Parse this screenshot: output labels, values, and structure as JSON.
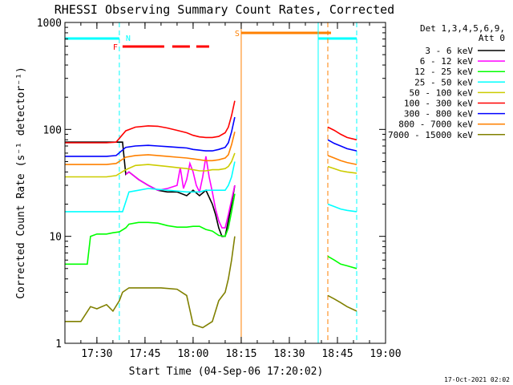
{
  "chart_data": {
    "type": "line",
    "title": "RHESSI Observing Summary Count Rates, Corrected",
    "xlabel": "Start Time (04-Sep-06 17:20:02)",
    "ylabel": "Corrected Count Rate (s⁻¹ detector⁻¹)",
    "yscale": "log",
    "ylim": [
      1,
      1000
    ],
    "xlim": [
      "17:20:02",
      "19:00:00"
    ],
    "x_ticks": [
      "17:30",
      "17:45",
      "18:00",
      "18:15",
      "18:30",
      "18:45",
      "19:00"
    ],
    "y_ticks": [
      "1",
      "10",
      "100",
      "1000"
    ],
    "legend_position": "right",
    "legend_title": [
      "Det 1,3,4,5,6,9,",
      "Att 0"
    ],
    "footer": "17-Oct-2021 02:02",
    "series": [
      {
        "name": "3 - 6 keV",
        "color": "#000000",
        "x": [
          "17:20",
          "17:28",
          "17:30",
          "17:33",
          "17:35",
          "17:38",
          "17:39",
          "17:40",
          "17:43",
          "17:46",
          "17:49",
          "17:52",
          "17:55",
          "17:58",
          "18:00",
          "18:02",
          "18:04",
          "18:06",
          "18:07",
          "18:08",
          "18:09",
          "18:10",
          "18:11",
          "18:12",
          "18:13"
        ],
        "y": [
          76,
          76,
          76,
          76,
          76,
          76,
          38,
          40,
          34,
          30,
          27,
          26,
          26,
          24,
          27,
          24,
          27,
          20,
          16,
          12,
          10,
          10,
          14,
          20,
          30
        ]
      },
      {
        "name": "6 - 12 keV",
        "color": "#ff00ff",
        "x": [
          "17:39",
          "17:40",
          "17:43",
          "17:46",
          "17:49",
          "17:52",
          "17:55",
          "17:56",
          "17:57",
          "17:58",
          "17:59",
          "18:00",
          "18:01",
          "18:02",
          "18:03",
          "18:04",
          "18:05",
          "18:06",
          "18:07",
          "18:08",
          "18:09",
          "18:10",
          "18:11",
          "18:12",
          "18:13"
        ],
        "y": [
          38,
          40,
          34,
          30,
          27,
          28,
          30,
          44,
          28,
          34,
          48,
          40,
          30,
          26,
          36,
          56,
          36,
          26,
          18,
          14,
          12,
          12,
          16,
          22,
          30
        ]
      },
      {
        "name": "12 - 25 keV",
        "color": "#00ff00",
        "x": [
          "17:20",
          "17:27",
          "17:28",
          "17:30",
          "17:33",
          "17:35",
          "17:37",
          "17:39",
          "17:40",
          "17:43",
          "17:46",
          "17:49",
          "17:52",
          "17:55",
          "17:58",
          "18:00",
          "18:02",
          "18:04",
          "18:06",
          "18:08",
          "18:10",
          "18:11",
          "18:12",
          "18:13",
          "18:42",
          "18:44",
          "18:46",
          "18:48",
          "18:51"
        ],
        "y": [
          5.5,
          5.5,
          10,
          10.5,
          10.5,
          10.8,
          11,
          12,
          13,
          13.5,
          13.5,
          13.3,
          12.6,
          12.2,
          12.2,
          12.4,
          12.4,
          11.6,
          11.2,
          10.2,
          10,
          12,
          17,
          25,
          6.5,
          6,
          5.5,
          5.3,
          5
        ]
      },
      {
        "name": "25 - 50 keV",
        "color": "#00ffff",
        "x": [
          "17:20",
          "17:24",
          "17:28",
          "17:30",
          "17:33",
          "17:36",
          "17:38",
          "17:40",
          "17:43",
          "17:46",
          "17:49",
          "17:52",
          "17:55",
          "17:58",
          "18:00",
          "18:02",
          "18:04",
          "18:06",
          "18:08",
          "18:10",
          "18:11",
          "18:12",
          "18:13",
          "18:42",
          "18:44",
          "18:46",
          "18:48",
          "18:51"
        ],
        "y": [
          17,
          17,
          17,
          17,
          17,
          17,
          17,
          26,
          27,
          28,
          27.5,
          27,
          26.5,
          26,
          26,
          26,
          27,
          27,
          27,
          27,
          30,
          36,
          50,
          20,
          19,
          18,
          17.5,
          17
        ]
      },
      {
        "name": "50 - 100 keV",
        "color": "#cccc00",
        "x": [
          "17:20",
          "17:24",
          "17:28",
          "17:30",
          "17:33",
          "17:36",
          "17:39",
          "17:42",
          "17:46",
          "17:49",
          "17:52",
          "17:55",
          "17:58",
          "18:00",
          "18:02",
          "18:04",
          "18:06",
          "18:08",
          "18:10",
          "18:11",
          "18:12",
          "18:13",
          "18:42",
          "18:44",
          "18:46",
          "18:48",
          "18:51"
        ],
        "y": [
          36,
          36,
          36,
          36,
          36,
          37,
          42,
          46,
          47,
          46,
          45,
          44,
          43,
          42,
          41,
          41,
          42,
          42,
          43,
          45,
          50,
          60,
          45,
          43,
          41,
          40,
          39
        ]
      },
      {
        "name": "100 - 300 keV",
        "color": "#ff0000",
        "x": [
          "17:20",
          "17:24",
          "17:28",
          "17:30",
          "17:33",
          "17:36",
          "17:39",
          "17:42",
          "17:46",
          "17:49",
          "17:52",
          "17:55",
          "17:58",
          "18:00",
          "18:02",
          "18:04",
          "18:06",
          "18:08",
          "18:10",
          "18:11",
          "18:12",
          "18:13",
          "18:42",
          "18:44",
          "18:46",
          "18:48",
          "18:51"
        ],
        "y": [
          75,
          75,
          75,
          75,
          75,
          76,
          97,
          105,
          108,
          107,
          103,
          98,
          93,
          88,
          85,
          84,
          84,
          86,
          93,
          105,
          135,
          185,
          105,
          98,
          90,
          84,
          80
        ]
      },
      {
        "name": "300 - 800 keV",
        "color": "#0000ff",
        "x": [
          "17:20",
          "17:24",
          "17:28",
          "17:30",
          "17:33",
          "17:36",
          "17:39",
          "17:42",
          "17:46",
          "17:49",
          "17:52",
          "17:55",
          "17:58",
          "18:00",
          "18:02",
          "18:04",
          "18:06",
          "18:08",
          "18:10",
          "18:11",
          "18:12",
          "18:13",
          "18:42",
          "18:44",
          "18:46",
          "18:48",
          "18:51"
        ],
        "y": [
          56,
          56,
          56,
          56,
          56,
          57,
          68,
          70,
          71,
          70,
          69,
          68,
          67,
          65,
          64,
          63,
          63,
          65,
          68,
          75,
          95,
          130,
          80,
          74,
          70,
          66,
          63
        ]
      },
      {
        "name": "800 - 7000 keV",
        "color": "#ff8000",
        "x": [
          "17:20",
          "17:24",
          "17:28",
          "17:30",
          "17:33",
          "17:36",
          "17:39",
          "17:42",
          "17:46",
          "17:49",
          "17:52",
          "17:55",
          "17:58",
          "18:00",
          "18:02",
          "18:04",
          "18:06",
          "18:08",
          "18:10",
          "18:11",
          "18:12",
          "18:13",
          "18:42",
          "18:44",
          "18:46",
          "18:48",
          "18:51"
        ],
        "y": [
          47,
          47,
          47,
          47,
          47,
          48,
          55,
          57,
          58,
          57,
          56,
          55,
          54,
          53,
          52,
          51,
          51,
          52,
          54,
          58,
          72,
          95,
          57,
          54,
          51,
          49,
          47
        ]
      },
      {
        "name": "7000 - 15000 keV",
        "color": "#808000",
        "x": [
          "17:20",
          "17:25",
          "17:28",
          "17:30",
          "17:33",
          "17:35",
          "17:37",
          "17:38",
          "17:40",
          "17:45",
          "17:50",
          "17:55",
          "17:58",
          "18:00",
          "18:03",
          "18:06",
          "18:08",
          "18:10",
          "18:11",
          "18:12",
          "18:13",
          "18:42",
          "18:44",
          "18:46",
          "18:48",
          "18:51"
        ],
        "y": [
          1.6,
          1.6,
          2.2,
          2.1,
          2.3,
          2.0,
          2.5,
          3.0,
          3.3,
          3.3,
          3.3,
          3.2,
          2.8,
          1.5,
          1.4,
          1.6,
          2.5,
          3.0,
          4.0,
          6.0,
          10.0,
          2.8,
          2.6,
          2.4,
          2.2,
          2.0
        ]
      }
    ],
    "annotations": [
      {
        "label": "N",
        "color": "#00ffff"
      },
      {
        "label": "F",
        "color": "#ff0000"
      },
      {
        "label": "S",
        "color": "#ff8000"
      }
    ]
  }
}
